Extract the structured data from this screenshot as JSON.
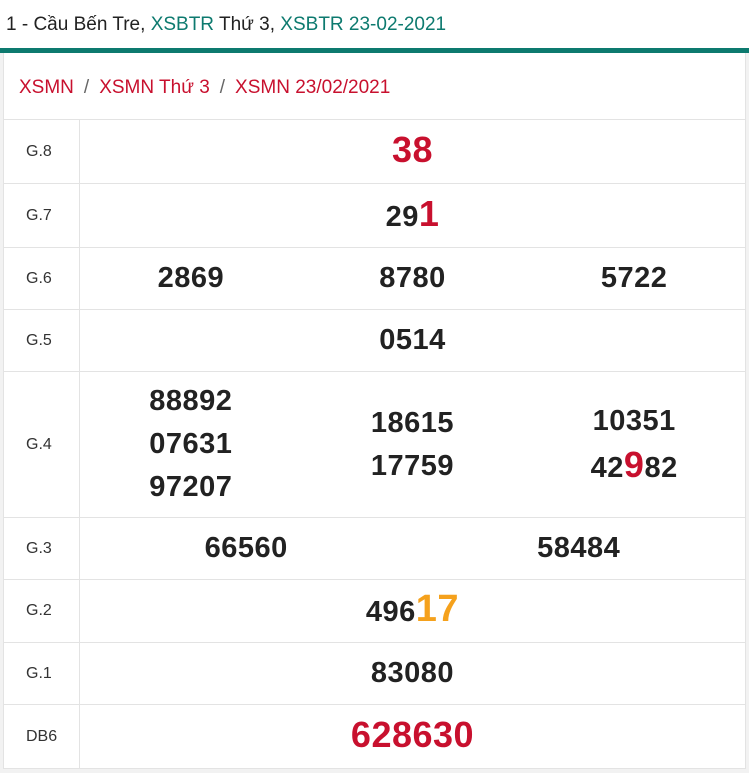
{
  "header": {
    "parts": [
      {
        "text": "1 - Cầu Bến Tre,",
        "link": false
      },
      {
        "text": "XSBTR",
        "link": true
      },
      {
        "text": "Thứ 3,",
        "link": false
      },
      {
        "text": "XSBTR 23-02-2021",
        "link": true
      }
    ]
  },
  "breadcrumb": {
    "separator": "/",
    "items": [
      "XSMN",
      "XSMN Thứ 3",
      "XSMN 23/02/2021"
    ]
  },
  "table": {
    "rows": [
      {
        "label": "G.8",
        "cols": [
          [
            [
              {
                "text": "38",
                "color": "red"
              }
            ]
          ]
        ]
      },
      {
        "label": "G.7",
        "cols": [
          [
            [
              {
                "text": "29"
              },
              {
                "text": "1",
                "color": "red"
              }
            ]
          ]
        ]
      },
      {
        "label": "G.6",
        "cols": [
          [
            [
              {
                "text": "2869"
              }
            ]
          ],
          [
            [
              {
                "text": "8780"
              }
            ]
          ],
          [
            [
              {
                "text": "5722"
              }
            ]
          ]
        ]
      },
      {
        "label": "G.5",
        "cols": [
          [
            [
              {
                "text": "0514"
              }
            ]
          ]
        ]
      },
      {
        "label": "G.4",
        "cols": [
          [
            [
              {
                "text": "88892"
              }
            ],
            [
              {
                "text": "07631"
              }
            ],
            [
              {
                "text": "97207"
              }
            ]
          ],
          [
            [
              {
                "text": "18615"
              }
            ],
            [
              {
                "text": "17759"
              }
            ]
          ],
          [
            [
              {
                "text": "10351"
              }
            ],
            [
              {
                "text": "42"
              },
              {
                "text": "9",
                "color": "red"
              },
              {
                "text": "82"
              }
            ]
          ]
        ]
      },
      {
        "label": "G.3",
        "cols": [
          [
            [
              {
                "text": "66560"
              }
            ]
          ],
          [
            [
              {
                "text": "58484"
              }
            ]
          ]
        ]
      },
      {
        "label": "G.2",
        "cols": [
          [
            [
              {
                "text": "496"
              },
              {
                "text": "17",
                "color": "orange"
              }
            ]
          ]
        ]
      },
      {
        "label": "G.1",
        "cols": [
          [
            [
              {
                "text": "83080"
              }
            ]
          ]
        ]
      },
      {
        "label": "DB6",
        "cols": [
          [
            [
              {
                "text": "628630",
                "color": "red"
              }
            ]
          ]
        ]
      }
    ]
  }
}
